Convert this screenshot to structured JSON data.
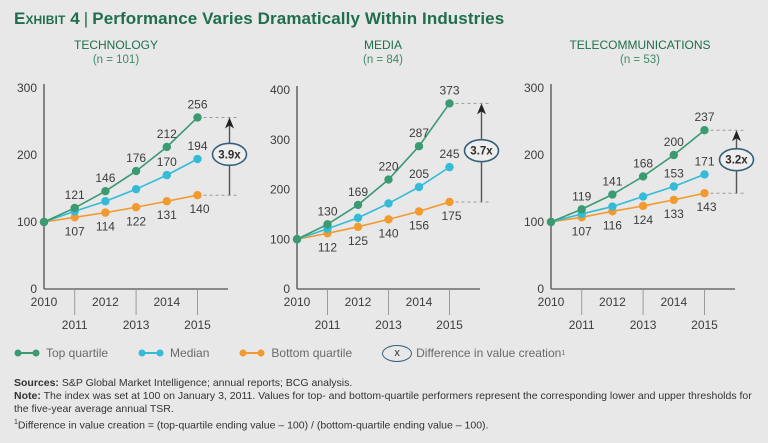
{
  "title": {
    "exhibit": "Exhibit 4",
    "separator": "|",
    "text": "Performance Varies Dramatically Within Industries"
  },
  "colors": {
    "top": "#3a9a72",
    "median": "#33bbd8",
    "bottom": "#f39a2e",
    "axis": "#6a6a6a",
    "callout_border": "#36607a",
    "title": "#1f6e4d"
  },
  "legend": {
    "top": "Top quartile",
    "median": "Median",
    "bottom": "Bottom quartile",
    "callout_symbol": "x",
    "callout": "Difference in value creation",
    "callout_sup": "1"
  },
  "notes": {
    "sources_label": "Sources:",
    "sources": " S&P Global Market Intelligence; annual reports; BCG analysis.",
    "note_label": "Note:",
    "note": " The index was set at 100 on January 3, 2011. Values for top- and bottom-quartile performers represent the corresponding lower and upper thresholds for the five-year average annual TSR.",
    "footnote_sup": "1",
    "footnote": "Difference in value creation = (top-quartile ending value – 100) / (bottom-quartile ending value – 100)."
  },
  "chart_data": [
    {
      "type": "line",
      "title": "TECHNOLOGY",
      "subtitle": "(n = 101)",
      "x": [
        2010,
        2011,
        2012,
        2013,
        2014,
        2015
      ],
      "xticks_top": [
        "2010",
        "2012",
        "2014"
      ],
      "xticks_bottom": [
        "2011",
        "2013",
        "2015"
      ],
      "ylim": [
        0,
        300
      ],
      "yticks": [
        0,
        100,
        200,
        300
      ],
      "series": [
        {
          "name": "Top quartile",
          "key": "top",
          "values": [
            100,
            121,
            146,
            176,
            212,
            256
          ],
          "labels": [
            null,
            "121",
            "146",
            "176",
            "212",
            "256"
          ],
          "label_pos": "above"
        },
        {
          "name": "Median",
          "key": "median",
          "values": [
            100,
            116,
            131,
            149,
            170,
            194
          ],
          "labels": [
            null,
            null,
            null,
            null,
            "170",
            "194"
          ],
          "label_pos": "above"
        },
        {
          "name": "Bottom quartile",
          "key": "bottom",
          "values": [
            100,
            107,
            114,
            122,
            131,
            140
          ],
          "labels": [
            null,
            "107",
            "114",
            "122",
            "131",
            "140"
          ],
          "label_pos": "below"
        }
      ],
      "callout": "3.9x"
    },
    {
      "type": "line",
      "title": "MEDIA",
      "subtitle": "(n = 84)",
      "x": [
        2010,
        2011,
        2012,
        2013,
        2014,
        2015
      ],
      "xticks_top": [
        "2010",
        "2012",
        "2014"
      ],
      "xticks_bottom": [
        "2011",
        "2013",
        "2015"
      ],
      "ylim": [
        0,
        400
      ],
      "yticks": [
        0,
        100,
        200,
        300,
        400
      ],
      "series": [
        {
          "name": "Top quartile",
          "key": "top",
          "values": [
            100,
            130,
            169,
            220,
            287,
            373
          ],
          "labels": [
            null,
            "130",
            "169",
            "220",
            "287",
            "373"
          ],
          "label_pos": "above"
        },
        {
          "name": "Median",
          "key": "median",
          "values": [
            100,
            121,
            143,
            172,
            205,
            245
          ],
          "labels": [
            null,
            null,
            null,
            null,
            "205",
            "245"
          ],
          "label_pos": "above"
        },
        {
          "name": "Bottom quartile",
          "key": "bottom",
          "values": [
            100,
            112,
            125,
            140,
            156,
            175
          ],
          "labels": [
            null,
            "112",
            "125",
            "140",
            "156",
            "175"
          ],
          "label_pos": "below"
        }
      ],
      "callout": "3.7x"
    },
    {
      "type": "line",
      "title": "TELECOMMUNICATIONS",
      "subtitle": "(n = 53)",
      "x": [
        2010,
        2011,
        2012,
        2013,
        2014,
        2015
      ],
      "xticks_top": [
        "2010",
        "2012",
        "2014"
      ],
      "xticks_bottom": [
        "2011",
        "2013",
        "2015"
      ],
      "ylim": [
        0,
        300
      ],
      "yticks": [
        0,
        100,
        200,
        300
      ],
      "series": [
        {
          "name": "Top quartile",
          "key": "top",
          "values": [
            100,
            119,
            141,
            168,
            200,
            237
          ],
          "labels": [
            null,
            "119",
            "141",
            "168",
            "200",
            "237"
          ],
          "label_pos": "above"
        },
        {
          "name": "Median",
          "key": "median",
          "values": [
            100,
            112,
            123,
            138,
            153,
            171
          ],
          "labels": [
            null,
            null,
            null,
            null,
            "153",
            "171"
          ],
          "label_pos": "above"
        },
        {
          "name": "Bottom quartile",
          "key": "bottom",
          "values": [
            100,
            107,
            116,
            124,
            133,
            143
          ],
          "labels": [
            null,
            "107",
            "116",
            "124",
            "133",
            "143"
          ],
          "label_pos": "below"
        }
      ],
      "callout": "3.2x"
    }
  ]
}
